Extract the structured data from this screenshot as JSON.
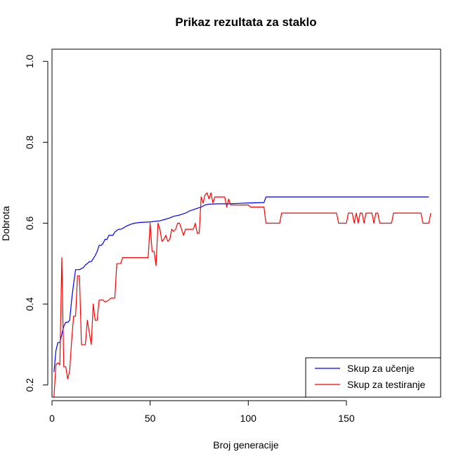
{
  "chart_data": {
    "type": "line",
    "title": "Prikaz rezultata za staklo",
    "xlabel": "Broj generacije",
    "ylabel": "Dobrota",
    "xlim": [
      0,
      198
    ],
    "ylim": [
      0.17,
      1.03
    ],
    "xticks": [
      0,
      50,
      100,
      150
    ],
    "yticks": [
      0.2,
      0.4,
      0.6,
      0.8,
      1.0
    ],
    "ytick_labels": [
      "0.2",
      "0.4",
      "0.6",
      "0.8",
      "1.0"
    ],
    "grid": false,
    "legend_position": "bottom-right",
    "series": [
      {
        "name": "Skup za učenje",
        "color": "#0000ff",
        "points": [
          [
            1,
            0.232
          ],
          [
            2,
            0.285
          ],
          [
            3,
            0.305
          ],
          [
            4,
            0.305
          ],
          [
            5,
            0.325
          ],
          [
            6,
            0.345
          ],
          [
            7,
            0.355
          ],
          [
            8,
            0.355
          ],
          [
            9,
            0.36
          ],
          [
            10,
            0.41
          ],
          [
            11,
            0.45
          ],
          [
            12,
            0.485
          ],
          [
            13,
            0.485
          ],
          [
            14,
            0.485
          ],
          [
            15,
            0.488
          ],
          [
            16,
            0.49
          ],
          [
            17,
            0.497
          ],
          [
            18,
            0.5
          ],
          [
            19,
            0.505
          ],
          [
            20,
            0.505
          ],
          [
            21,
            0.512
          ],
          [
            22,
            0.52
          ],
          [
            23,
            0.53
          ],
          [
            24,
            0.545
          ],
          [
            25,
            0.545
          ],
          [
            26,
            0.55
          ],
          [
            27,
            0.56
          ],
          [
            28,
            0.56
          ],
          [
            29,
            0.57
          ],
          [
            30,
            0.57
          ],
          [
            31,
            0.57
          ],
          [
            32,
            0.578
          ],
          [
            33,
            0.582
          ],
          [
            34,
            0.585
          ],
          [
            35,
            0.585
          ],
          [
            36,
            0.587
          ],
          [
            38,
            0.593
          ],
          [
            40,
            0.597
          ],
          [
            42,
            0.6
          ],
          [
            45,
            0.602
          ],
          [
            50,
            0.603
          ],
          [
            55,
            0.606
          ],
          [
            58,
            0.61
          ],
          [
            60,
            0.613
          ],
          [
            62,
            0.617
          ],
          [
            65,
            0.62
          ],
          [
            68,
            0.625
          ],
          [
            70,
            0.63
          ],
          [
            73,
            0.635
          ],
          [
            76,
            0.64
          ],
          [
            78,
            0.645
          ],
          [
            80,
            0.647
          ],
          [
            85,
            0.648
          ],
          [
            90,
            0.648
          ],
          [
            95,
            0.649
          ],
          [
            100,
            0.65
          ],
          [
            108,
            0.651
          ],
          [
            109,
            0.665
          ],
          [
            120,
            0.665
          ],
          [
            150,
            0.665
          ],
          [
            192,
            0.665
          ]
        ]
      },
      {
        "name": "Skup za testiranje",
        "color": "#ff0000",
        "points": [
          [
            1,
            0.17
          ],
          [
            2,
            0.25
          ],
          [
            3,
            0.255
          ],
          [
            4,
            0.25
          ],
          [
            5,
            0.515
          ],
          [
            6,
            0.245
          ],
          [
            7,
            0.245
          ],
          [
            8,
            0.215
          ],
          [
            9,
            0.235
          ],
          [
            10,
            0.31
          ],
          [
            11,
            0.37
          ],
          [
            12,
            0.37
          ],
          [
            13,
            0.47
          ],
          [
            14,
            0.47
          ],
          [
            15,
            0.3
          ],
          [
            16,
            0.3
          ],
          [
            17,
            0.3
          ],
          [
            18,
            0.36
          ],
          [
            19,
            0.33
          ],
          [
            20,
            0.3
          ],
          [
            21,
            0.4
          ],
          [
            22,
            0.36
          ],
          [
            23,
            0.36
          ],
          [
            24,
            0.41
          ],
          [
            26,
            0.41
          ],
          [
            27,
            0.405
          ],
          [
            29,
            0.41
          ],
          [
            30,
            0.415
          ],
          [
            32,
            0.415
          ],
          [
            33,
            0.5
          ],
          [
            34,
            0.5
          ],
          [
            35,
            0.5
          ],
          [
            36,
            0.515
          ],
          [
            40,
            0.515
          ],
          [
            45,
            0.515
          ],
          [
            49,
            0.515
          ],
          [
            50,
            0.6
          ],
          [
            51,
            0.53
          ],
          [
            52,
            0.53
          ],
          [
            53,
            0.495
          ],
          [
            54,
            0.6
          ],
          [
            55,
            0.585
          ],
          [
            56,
            0.555
          ],
          [
            57,
            0.56
          ],
          [
            58,
            0.57
          ],
          [
            59,
            0.555
          ],
          [
            60,
            0.56
          ],
          [
            61,
            0.585
          ],
          [
            62,
            0.58
          ],
          [
            63,
            0.585
          ],
          [
            64,
            0.6
          ],
          [
            65,
            0.6
          ],
          [
            66,
            0.585
          ],
          [
            67,
            0.57
          ],
          [
            68,
            0.585
          ],
          [
            69,
            0.585
          ],
          [
            70,
            0.585
          ],
          [
            71,
            0.585
          ],
          [
            72,
            0.585
          ],
          [
            73,
            0.6
          ],
          [
            74,
            0.575
          ],
          [
            75,
            0.575
          ],
          [
            76,
            0.665
          ],
          [
            77,
            0.65
          ],
          [
            78,
            0.67
          ],
          [
            79,
            0.675
          ],
          [
            80,
            0.66
          ],
          [
            81,
            0.675
          ],
          [
            82,
            0.65
          ],
          [
            83,
            0.665
          ],
          [
            88,
            0.665
          ],
          [
            89,
            0.64
          ],
          [
            90,
            0.66
          ],
          [
            91,
            0.645
          ],
          [
            100,
            0.645
          ],
          [
            101,
            0.64
          ],
          [
            108,
            0.64
          ],
          [
            109,
            0.6
          ],
          [
            116,
            0.6
          ],
          [
            117,
            0.625
          ],
          [
            130,
            0.625
          ],
          [
            145,
            0.625
          ],
          [
            146,
            0.6
          ],
          [
            150,
            0.6
          ],
          [
            151,
            0.625
          ],
          [
            153,
            0.625
          ],
          [
            154,
            0.6
          ],
          [
            155,
            0.625
          ],
          [
            156,
            0.6
          ],
          [
            157,
            0.625
          ],
          [
            158,
            0.625
          ],
          [
            159,
            0.6
          ],
          [
            160,
            0.625
          ],
          [
            163,
            0.625
          ],
          [
            164,
            0.6
          ],
          [
            165,
            0.625
          ],
          [
            166,
            0.625
          ],
          [
            167,
            0.6
          ],
          [
            173,
            0.6
          ],
          [
            174,
            0.625
          ],
          [
            188,
            0.625
          ],
          [
            189,
            0.6
          ],
          [
            192,
            0.6
          ],
          [
            193,
            0.625
          ]
        ]
      }
    ]
  }
}
